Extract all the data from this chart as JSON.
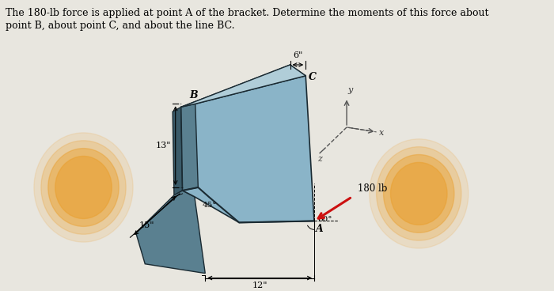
{
  "title_line1": "The 180-lb force is applied at point A of the bracket. Determine the moments of this force about",
  "title_line2": "point B, about point C, and about the line BC.",
  "bg_color": "#d0cfc8",
  "bracket_main_color": "#8ab4c8",
  "bracket_top_color": "#b0cdd8",
  "bracket_dark_color": "#5a8090",
  "bracket_darker_color": "#3a5a68",
  "bracket_edge_color": "#1a2a32",
  "force_color": "#cc1010",
  "orange_color": "#e8a030",
  "dim_6": "6\"",
  "dim_13": "13\"",
  "dim_15": "15\"",
  "dim_12": "12\"",
  "dim_45": "45°",
  "dim_60": "60°",
  "force_label": "180 lb",
  "pt_A": "A",
  "pt_B": "B",
  "pt_C": "C",
  "ax_x": "x",
  "ax_y": "y",
  "ax_z": "z",
  "white_bg": "#e8e6df"
}
